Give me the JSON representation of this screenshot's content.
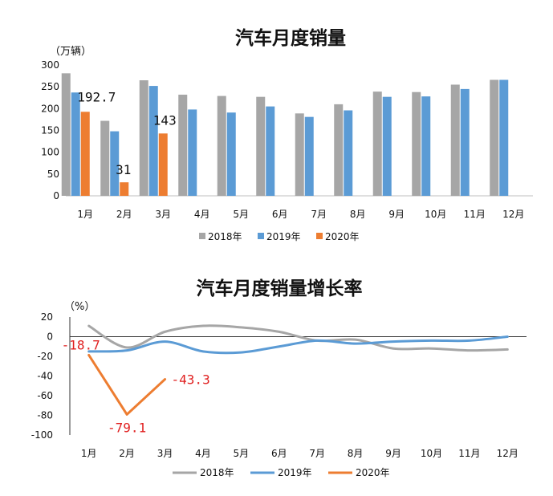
{
  "colors": {
    "s2018": "#a6a6a6",
    "s2019": "#5b9bd5",
    "s2020": "#ed7d31",
    "axis": "#333333",
    "annot_red": "#e02020"
  },
  "chart_data": [
    {
      "type": "bar",
      "title": "汽车月度销量",
      "ylabel": "（万辆）",
      "xlabel": "",
      "ylim": [
        0,
        300
      ],
      "yticks": [
        0,
        50,
        100,
        150,
        200,
        250,
        300
      ],
      "categories": [
        "1月",
        "2月",
        "3月",
        "4月",
        "5月",
        "6月",
        "7月",
        "8月",
        "9月",
        "10月",
        "11月",
        "12月"
      ],
      "series": [
        {
          "name": "2018年",
          "values": [
            281,
            172,
            265,
            232,
            229,
            227,
            189,
            210,
            239,
            238,
            255,
            266
          ]
        },
        {
          "name": "2019年",
          "values": [
            237,
            148,
            252,
            198,
            191,
            205,
            181,
            196,
            227,
            228,
            245,
            266
          ]
        },
        {
          "name": "2020年",
          "values": [
            192.7,
            31,
            143,
            null,
            null,
            null,
            null,
            null,
            null,
            null,
            null,
            null
          ]
        }
      ],
      "data_labels": [
        {
          "series": "2020年",
          "index": 0,
          "text": "192.7"
        },
        {
          "series": "2020年",
          "index": 1,
          "text": "31"
        },
        {
          "series": "2020年",
          "index": 2,
          "text": "143"
        }
      ],
      "legend_position": "bottom"
    },
    {
      "type": "line",
      "title": "汽车月度销量增长率",
      "ylabel": "（%）",
      "xlabel": "",
      "ylim": [
        -100,
        20
      ],
      "yticks": [
        20,
        0,
        -20,
        -40,
        -60,
        -80,
        -100
      ],
      "categories": [
        "1月",
        "2月",
        "3月",
        "4月",
        "5月",
        "6月",
        "7月",
        "8月",
        "9月",
        "10月",
        "11月",
        "12月"
      ],
      "series": [
        {
          "name": "2018年",
          "values": [
            11,
            -11,
            5,
            11,
            9.5,
            5,
            -4,
            -3,
            -12,
            -12,
            -14,
            -13
          ]
        },
        {
          "name": "2019年",
          "values": [
            -15,
            -14,
            -5,
            -15,
            -16,
            -10,
            -4,
            -7,
            -5,
            -4,
            -4,
            0
          ]
        },
        {
          "name": "2020年",
          "values": [
            -18.7,
            -79.1,
            -43.3,
            null,
            null,
            null,
            null,
            null,
            null,
            null,
            null,
            null
          ]
        }
      ],
      "data_labels": [
        {
          "series": "2020年",
          "index": 0,
          "text": "-18.7"
        },
        {
          "series": "2020年",
          "index": 1,
          "text": "-79.1"
        },
        {
          "series": "2020年",
          "index": 2,
          "text": "-43.3"
        }
      ],
      "legend_position": "bottom"
    }
  ]
}
